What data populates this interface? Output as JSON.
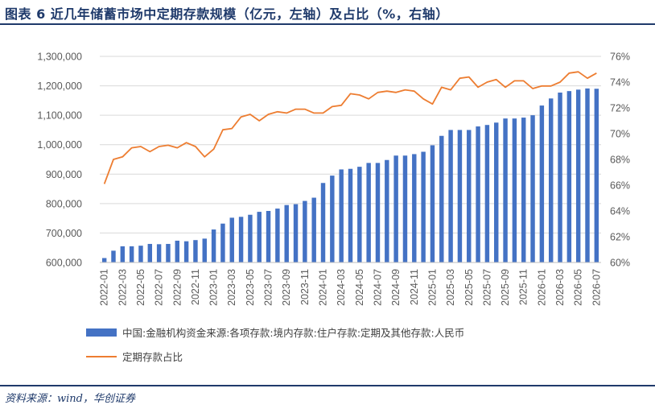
{
  "figure": {
    "title": "图表 6   近几年储蓄市场中定期存款规模（亿元，左轴）及占比（%，右轴）",
    "source": "资料来源：wind，华创证券"
  },
  "colors": {
    "bar": "#4472c4",
    "line": "#ed7d31",
    "title": "#1f3a6b",
    "grid": "#d9d9d9"
  },
  "chart_data": {
    "type": "bar",
    "title": "近几年储蓄市场中定期存款规模（亿元，左轴）及占比（%，右轴）",
    "x": [
      "2022-01",
      "2022-02",
      "2022-03",
      "2022-04",
      "2022-05",
      "2022-06",
      "2022-07",
      "2022-08",
      "2022-09",
      "2022-10",
      "2022-11",
      "2022-12",
      "2023-01",
      "2023-02",
      "2023-03",
      "2023-04",
      "2023-05",
      "2023-06",
      "2023-07",
      "2023-08",
      "2023-09",
      "2023-10",
      "2023-11",
      "2023-12",
      "2024-01",
      "2024-02",
      "2024-03",
      "2024-04",
      "2024-05",
      "2024-06",
      "2024-07",
      "2024-08",
      "2024-09",
      "2024-10",
      "2024-11",
      "2024-12",
      "2025-01",
      "2025-02",
      "2025-03",
      "2025-04",
      "2025-05",
      "2025-06",
      "2025-07",
      "2025-08",
      "2025-09",
      "2025-10",
      "2025-11",
      "2025-12",
      "2026-01",
      "2026-02",
      "2026-03",
      "2026-04",
      "2026-05",
      "2026-06",
      "2026-07"
    ],
    "xtick_labels": [
      "2022-01",
      "2022-03",
      "2022-05",
      "2022-07",
      "2022-09",
      "2022-11",
      "2023-01",
      "2023-03",
      "2023-05",
      "2023-07",
      "2023-09",
      "2023-11",
      "2024-01",
      "2024-03",
      "2024-05",
      "2024-07",
      "2024-09",
      "2024-11",
      "2025-01",
      "2025-03",
      "2025-05",
      "2025-07",
      "2025-09",
      "2025-11",
      "2026-01",
      "2026-03",
      "2026-05",
      "2026-07"
    ],
    "y_left": {
      "ylim": [
        600000,
        1300000
      ],
      "ticks": [
        "600,000",
        "700,000",
        "800,000",
        "900,000",
        "1,000,000",
        "1,100,000",
        "1,200,000",
        "1,300,000"
      ]
    },
    "y_right": {
      "ylim": [
        60,
        76
      ],
      "ticks": [
        "60%",
        "62%",
        "64%",
        "66%",
        "68%",
        "70%",
        "72%",
        "74%",
        "76%"
      ]
    },
    "grid": true,
    "legend_position": "bottom",
    "series": [
      {
        "name": "中国:金融机构资金来源:各项存款:境内存款:住户存款:定期及其他存款:人民币",
        "type": "bar",
        "axis": "left",
        "values": [
          615000,
          640000,
          655000,
          655000,
          657000,
          663000,
          662000,
          663000,
          674000,
          672000,
          676000,
          681000,
          712000,
          732000,
          752000,
          755000,
          762000,
          772000,
          775000,
          783000,
          795000,
          798000,
          809000,
          820000,
          870000,
          895000,
          916000,
          918000,
          925000,
          938000,
          938000,
          948000,
          963000,
          963000,
          968000,
          976000,
          998000,
          1030000,
          1050000,
          1050000,
          1050000,
          1062000,
          1067000,
          1075000,
          1089000,
          1089000,
          1092000,
          1100000,
          1133000,
          1157000,
          1177000,
          1182000,
          1187000,
          1191000,
          1190000
        ]
      },
      {
        "name": "定期存款占比",
        "type": "line",
        "axis": "right",
        "values": [
          66.1,
          68.0,
          68.2,
          68.9,
          69.0,
          68.6,
          69.0,
          69.1,
          68.9,
          69.3,
          69.0,
          68.2,
          68.8,
          70.3,
          70.4,
          71.3,
          71.5,
          71.0,
          71.5,
          71.7,
          71.6,
          71.9,
          71.9,
          71.6,
          71.6,
          72.1,
          72.2,
          73.1,
          73.0,
          72.7,
          73.2,
          73.3,
          73.2,
          73.4,
          73.3,
          72.7,
          72.3,
          73.6,
          73.4,
          74.3,
          74.4,
          73.6,
          74.0,
          74.2,
          73.6,
          74.1,
          74.1,
          73.5,
          73.7,
          73.7,
          74.0,
          74.7,
          74.8,
          74.3,
          74.7
        ]
      }
    ]
  }
}
